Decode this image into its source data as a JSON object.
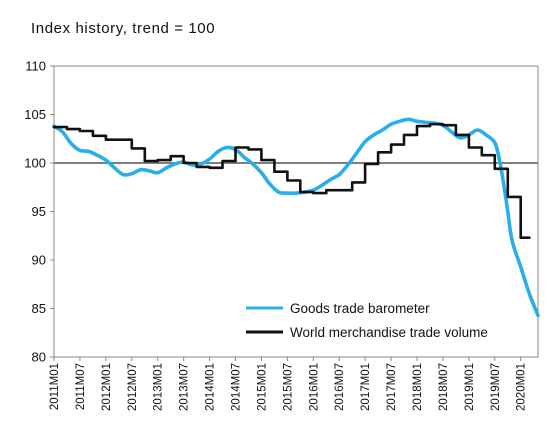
{
  "subtitle": "Index history, trend = 100",
  "chart_data": {
    "type": "line",
    "ylim": [
      80,
      110
    ],
    "yticks": [
      80,
      85,
      90,
      95,
      100,
      105,
      110
    ],
    "x_range": [
      "2011M01",
      "2020M05"
    ],
    "x_tick_labels": [
      "2011M01",
      "2011M07",
      "2012M01",
      "2012M07",
      "2013M01",
      "2013M07",
      "2014M01",
      "2014M07",
      "2015M01",
      "2015M07",
      "2016M01",
      "2016M07",
      "2017M01",
      "2017M07",
      "2018M01",
      "2018M07",
      "2019M01",
      "2019M07",
      "2020M01"
    ],
    "reference_line": 100,
    "legend_position": "bottom-right",
    "series": [
      {
        "name": "Goods trade barometer",
        "color": "#2aaee8",
        "style": "smooth",
        "points": [
          [
            "2011M01",
            103.8
          ],
          [
            "2011M03",
            103.2
          ],
          [
            "2011M05",
            102.0
          ],
          [
            "2011M07",
            101.3
          ],
          [
            "2011M09",
            101.2
          ],
          [
            "2011M11",
            100.8
          ],
          [
            "2012M01",
            100.3
          ],
          [
            "2012M03",
            99.5
          ],
          [
            "2012M05",
            98.8
          ],
          [
            "2012M07",
            98.9
          ],
          [
            "2012M09",
            99.3
          ],
          [
            "2012M11",
            99.2
          ],
          [
            "2013M01",
            99.0
          ],
          [
            "2013M03",
            99.5
          ],
          [
            "2013M05",
            99.9
          ],
          [
            "2013M07",
            100.1
          ],
          [
            "2013M09",
            99.8
          ],
          [
            "2013M11",
            99.9
          ],
          [
            "2014M01",
            100.4
          ],
          [
            "2014M03",
            101.2
          ],
          [
            "2014M05",
            101.6
          ],
          [
            "2014M07",
            101.4
          ],
          [
            "2014M09",
            100.6
          ],
          [
            "2014M11",
            99.9
          ],
          [
            "2015M01",
            99.0
          ],
          [
            "2015M03",
            97.8
          ],
          [
            "2015M05",
            97.0
          ],
          [
            "2015M07",
            96.9
          ],
          [
            "2015M09",
            96.9
          ],
          [
            "2015M11",
            97.0
          ],
          [
            "2016M01",
            97.2
          ],
          [
            "2016M03",
            97.7
          ],
          [
            "2016M05",
            98.3
          ],
          [
            "2016M07",
            98.8
          ],
          [
            "2016M09",
            99.8
          ],
          [
            "2016M11",
            101.0
          ],
          [
            "2017M01",
            102.2
          ],
          [
            "2017M03",
            102.9
          ],
          [
            "2017M05",
            103.4
          ],
          [
            "2017M07",
            104.0
          ],
          [
            "2017M09",
            104.3
          ],
          [
            "2017M11",
            104.5
          ],
          [
            "2018M01",
            104.3
          ],
          [
            "2018M03",
            104.2
          ],
          [
            "2018M05",
            104.1
          ],
          [
            "2018M07",
            103.9
          ],
          [
            "2018M09",
            103.2
          ],
          [
            "2018M11",
            102.6
          ],
          [
            "2019M01",
            102.9
          ],
          [
            "2019M03",
            103.4
          ],
          [
            "2019M05",
            102.9
          ],
          [
            "2019M07",
            102.1
          ],
          [
            "2019M08",
            100.5
          ],
          [
            "2019M09",
            98.0
          ],
          [
            "2019M10",
            95.0
          ],
          [
            "2019M11",
            92.0
          ],
          [
            "2020M01",
            89.3
          ],
          [
            "2020M03",
            86.5
          ],
          [
            "2020M05",
            84.3
          ]
        ]
      },
      {
        "name": "World merchandise trade volume",
        "color": "#111111",
        "style": "step",
        "points": [
          [
            "2011M01",
            103.7
          ],
          [
            "2011M04",
            103.5
          ],
          [
            "2011M07",
            103.3
          ],
          [
            "2011M10",
            102.8
          ],
          [
            "2012M01",
            102.4
          ],
          [
            "2012M04",
            102.4
          ],
          [
            "2012M07",
            101.5
          ],
          [
            "2012M10",
            100.2
          ],
          [
            "2013M01",
            100.3
          ],
          [
            "2013M04",
            100.7
          ],
          [
            "2013M07",
            100.0
          ],
          [
            "2013M10",
            99.6
          ],
          [
            "2014M01",
            99.5
          ],
          [
            "2014M04",
            100.2
          ],
          [
            "2014M07",
            101.6
          ],
          [
            "2014M10",
            101.4
          ],
          [
            "2015M01",
            100.3
          ],
          [
            "2015M04",
            99.1
          ],
          [
            "2015M07",
            98.2
          ],
          [
            "2015M10",
            97.0
          ],
          [
            "2016M01",
            96.9
          ],
          [
            "2016M04",
            97.2
          ],
          [
            "2016M07",
            97.2
          ],
          [
            "2016M10",
            98.0
          ],
          [
            "2017M01",
            99.9
          ],
          [
            "2017M04",
            101.1
          ],
          [
            "2017M07",
            101.9
          ],
          [
            "2017M10",
            102.9
          ],
          [
            "2018M01",
            103.8
          ],
          [
            "2018M04",
            104.0
          ],
          [
            "2018M07",
            103.9
          ],
          [
            "2018M10",
            102.9
          ],
          [
            "2019M01",
            101.6
          ],
          [
            "2019M04",
            100.8
          ],
          [
            "2019M07",
            99.4
          ],
          [
            "2019M10",
            96.5
          ],
          [
            "2020M01",
            92.3
          ],
          [
            "2020M03",
            92.3
          ]
        ]
      }
    ]
  }
}
